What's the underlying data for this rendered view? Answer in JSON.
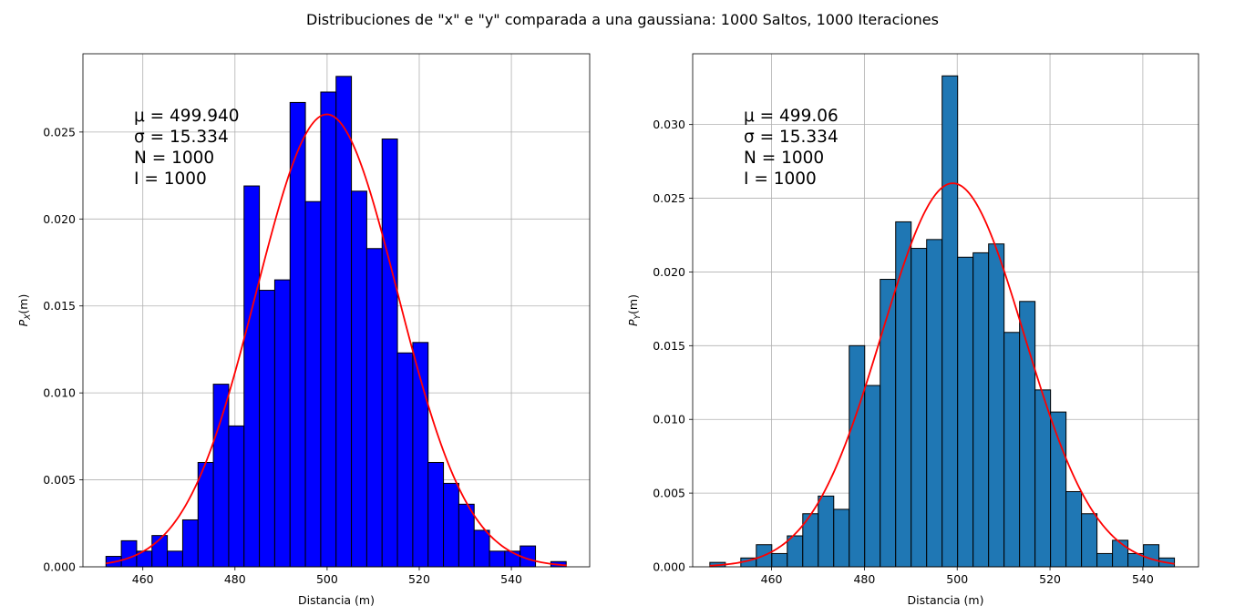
{
  "figure": {
    "suptitle": "Distribuciones de \"x\" e \"y\" comparada a una gaussiana: 1000 Saltos, 1000 Iteraciones"
  },
  "chart_data": [
    {
      "type": "bar",
      "xlabel": "Distancia (m)",
      "ylabel_main": "P",
      "ylabel_sub": "X",
      "ylabel_tail": "(m)",
      "xlim": [
        447.0,
        557.0
      ],
      "ylim": [
        0.0,
        0.0295
      ],
      "xticks": [
        460,
        480,
        500,
        520,
        540
      ],
      "yticks": [
        0.0,
        0.005,
        0.01,
        0.015,
        0.02,
        0.025
      ],
      "ytick_labels": [
        "0.000",
        "0.005",
        "0.010",
        "0.015",
        "0.020",
        "0.025"
      ],
      "grid": true,
      "bar_color": "#0000ff",
      "bar_edge_color": "#000000",
      "bin_start": 452.0,
      "bin_width": 3.33,
      "values": [
        0.0006,
        0.0015,
        0.0009,
        0.0018,
        0.0009,
        0.0027,
        0.006,
        0.0105,
        0.0081,
        0.0219,
        0.0159,
        0.0165,
        0.0267,
        0.021,
        0.0273,
        0.0282,
        0.0216,
        0.0183,
        0.0246,
        0.0123,
        0.0129,
        0.006,
        0.0048,
        0.0036,
        0.0021,
        0.0009,
        0.0009,
        0.0012,
        0.0,
        0.0003
      ],
      "curve": {
        "color": "#ff0000",
        "mu": 499.94,
        "sigma": 15.334,
        "x_range": [
          452.0,
          552.0
        ]
      },
      "stats": {
        "mu_line": "μ = 499.940",
        "sigma_line": "σ = 15.334",
        "n_line": "N = 1000",
        "i_line": "I = 1000"
      }
    },
    {
      "type": "bar",
      "xlabel": "Distancia (m)",
      "ylabel_main": "P",
      "ylabel_sub": "Y",
      "ylabel_tail": "(m)",
      "xlim": [
        443.0,
        552.0
      ],
      "ylim": [
        0.0,
        0.0348
      ],
      "xticks": [
        460,
        480,
        500,
        520,
        540
      ],
      "yticks": [
        0.0,
        0.005,
        0.01,
        0.015,
        0.02,
        0.025,
        0.03
      ],
      "ytick_labels": [
        "0.000",
        "0.005",
        "0.010",
        "0.015",
        "0.020",
        "0.025",
        "0.030"
      ],
      "grid": true,
      "bar_color": "#1f77b4",
      "bar_edge_color": "#000000",
      "bin_start": 446.7,
      "bin_width": 3.337,
      "values": [
        0.0003,
        0.0,
        0.0006,
        0.0015,
        0.0009,
        0.0021,
        0.0036,
        0.0048,
        0.0039,
        0.015,
        0.0123,
        0.0195,
        0.0234,
        0.0216,
        0.0222,
        0.0333,
        0.021,
        0.0213,
        0.0219,
        0.0159,
        0.018,
        0.012,
        0.0105,
        0.0051,
        0.0036,
        0.0009,
        0.0018,
        0.0009,
        0.0015,
        0.0006
      ],
      "curve": {
        "color": "#ff0000",
        "mu": 499.06,
        "sigma": 15.334,
        "x_range": [
          446.7,
          546.8
        ]
      },
      "stats": {
        "mu_line": "μ = 499.06",
        "sigma_line": "σ = 15.334",
        "n_line": "N = 1000",
        "i_line": "I = 1000"
      }
    }
  ]
}
